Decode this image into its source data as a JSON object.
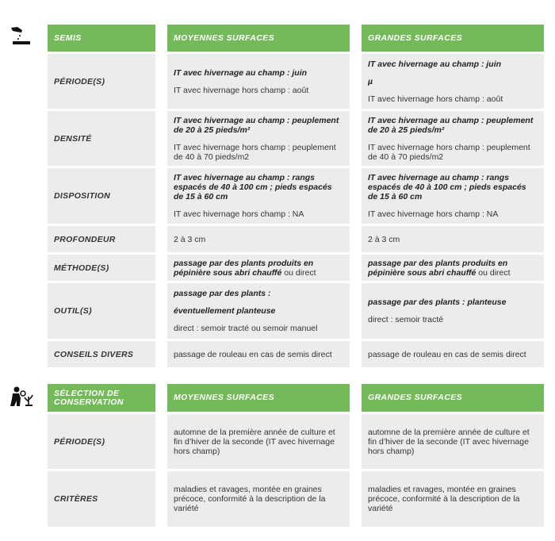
{
  "icons": [
    "sowing-hand-icon",
    "inspecting-plant-icon"
  ],
  "colors": {
    "header": "#74b95a",
    "cell": "#ececec"
  },
  "tables": [
    {
      "headers": [
        "SEMIS",
        "MOYENNES SURFACES",
        "GRANDES SURFACES"
      ],
      "rows": [
        {
          "label": "PÉRIODE(S)",
          "cells": [
            [
              [
                {
                  "t": "IT avec hivernage au champ : juin",
                  "b": true
                }
              ],
              [
                {
                  "t": " IT avec hivernage hors champ : août"
                }
              ]
            ],
            [
              [
                {
                  "t": "IT avec hivernage au champ : juin",
                  "b": true
                }
              ],
              [
                {
                  "t": "µ",
                  "b": true
                }
              ],
              [
                {
                  "t": "IT avec hivernage hors champ : août"
                }
              ]
            ]
          ]
        },
        {
          "label": "DENSITÉ",
          "cells": [
            [
              [
                {
                  "t": "IT avec hivernage au champ : peuplement de 20 à 25 pieds/m²",
                  "b": true
                }
              ],
              [
                {
                  "t": "IT avec hivernage hors champ : peuplement de 40 à 70 pieds/m2"
                }
              ]
            ],
            [
              [
                {
                  "t": "IT avec hivernage au champ : peuplement de 20 à 25 pieds/m²",
                  "b": true
                }
              ],
              [
                {
                  "t": "IT avec hivernage hors champ : peuplement de 40 à 70 pieds/m2"
                }
              ]
            ]
          ]
        },
        {
          "label": "DISPOSITION",
          "cells": [
            [
              [
                {
                  "t": "IT avec hivernage au champ : rangs espacés de 40 à 100 cm ; pieds espacés de 15 à 60 cm",
                  "b": true
                }
              ],
              [
                {
                  "t": "IT avec hivernage hors champ : NA"
                }
              ]
            ],
            [
              [
                {
                  "t": "IT avec hivernage au champ : rangs espacés de 40 à 100 cm ; pieds espacés de 15 à 60 cm",
                  "b": true
                }
              ],
              [
                {
                  "t": "IT avec hivernage hors champ : NA"
                }
              ]
            ]
          ]
        },
        {
          "label": "PROFONDEUR",
          "cells": [
            [
              [
                {
                  "t": "2 à 3 cm"
                }
              ]
            ],
            [
              [
                {
                  "t": "2 à 3 cm"
                }
              ]
            ]
          ]
        },
        {
          "label": "MÉTHODE(S)",
          "cells": [
            [
              [
                {
                  "t": "passage par des plants produits en pépinière sous abri chauffé",
                  "b": true
                },
                {
                  "t": " ou direct"
                }
              ]
            ],
            [
              [
                {
                  "t": "passage par des plants produits en pépinière sous abri chauffé",
                  "b": true
                },
                {
                  "t": " ou direct"
                }
              ]
            ]
          ]
        },
        {
          "label": "OUTIL(S)",
          "cells": [
            [
              [
                {
                  "t": "passage par des plants :",
                  "b": true
                }
              ],
              [
                {
                  "t": "éventuellement planteuse",
                  "b": true
                }
              ],
              [
                {
                  "t": "direct : semoir tracté ou semoir manuel"
                }
              ]
            ],
            [
              [
                {
                  "t": "passage par des plants : planteuse",
                  "b": true
                }
              ],
              [
                {
                  "t": "direct : semoir tracté"
                }
              ]
            ]
          ]
        },
        {
          "label": "CONSEILS DIVERS",
          "cells": [
            [
              [
                {
                  "t": "passage de rouleau en cas de semis direct"
                }
              ]
            ],
            [
              [
                {
                  "t": "passage de rouleau en cas de semis direct"
                }
              ]
            ]
          ]
        }
      ]
    },
    {
      "headers": [
        "SÉLECTION DE CONSERVATION",
        "MOYENNES SURFACES",
        "GRANDES SURFACES"
      ],
      "rows": [
        {
          "label": "PÉRIODE(S)",
          "cells": [
            [
              [
                {
                  "t": "automne de la première année de culture et fin d’hiver de la seconde (IT avec hivernage hors champ)"
                }
              ]
            ],
            [
              [
                {
                  "t": "automne de la première année de culture et fin d’hiver de la seconde (IT avec hivernage hors champ)"
                }
              ]
            ]
          ]
        },
        {
          "label": "CRITÈRES",
          "cells": [
            [
              [
                {
                  "t": "maladies et ravages, montée en graines précoce, conformité à la description de la variété"
                }
              ]
            ],
            [
              [
                {
                  "t": "maladies et ravages, montée en graines précoce, conformité à la description de la variété"
                }
              ]
            ]
          ]
        }
      ]
    }
  ]
}
